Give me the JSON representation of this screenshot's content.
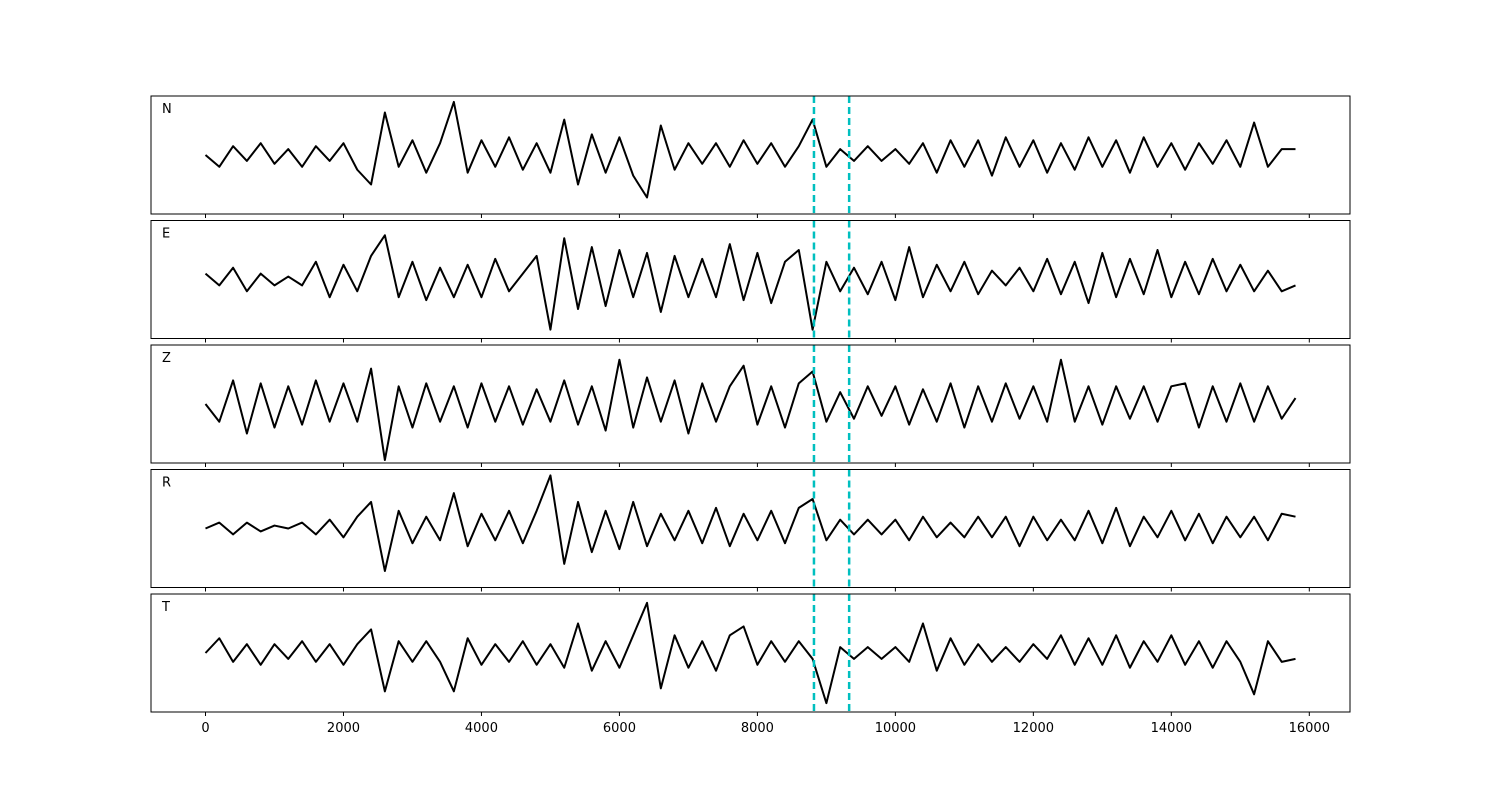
{
  "chart_data": [
    {
      "type": "line",
      "label": "N",
      "color": "#000000",
      "xlim": [
        -790,
        16590
      ],
      "ylim": [
        -1,
        1
      ],
      "xticks": [
        0,
        2000,
        4000,
        6000,
        8000,
        10000,
        12000,
        14000,
        16000
      ],
      "show_xtick_labels": false,
      "vlines": [
        8820,
        9330
      ],
      "vline_color": "#00bfbf",
      "x": [
        0,
        200,
        400,
        600,
        800,
        1000,
        1200,
        1400,
        1600,
        1800,
        2000,
        2200,
        2400,
        2600,
        2800,
        3000,
        3200,
        3400,
        3600,
        3800,
        4000,
        4200,
        4400,
        4600,
        4800,
        5000,
        5200,
        5400,
        5600,
        5800,
        6000,
        6200,
        6400,
        6600,
        6800,
        7000,
        7200,
        7400,
        7600,
        7800,
        8000,
        8200,
        8400,
        8600,
        8800,
        9000,
        9200,
        9400,
        9600,
        9800,
        10000,
        10200,
        10400,
        10600,
        10800,
        11000,
        11200,
        11400,
        11600,
        11800,
        12000,
        12200,
        12400,
        12600,
        12800,
        13000,
        13200,
        13400,
        13600,
        13800,
        14000,
        14200,
        14400,
        14600,
        14800,
        15000,
        15200,
        15400,
        15600,
        15800
      ],
      "values": [
        0.0,
        -0.2,
        0.15,
        -0.1,
        0.2,
        -0.15,
        0.1,
        -0.2,
        0.15,
        -0.1,
        0.2,
        -0.25,
        -0.5,
        0.72,
        -0.2,
        0.25,
        -0.3,
        0.2,
        0.9,
        -0.3,
        0.25,
        -0.2,
        0.3,
        -0.25,
        0.2,
        -0.3,
        0.6,
        -0.5,
        0.35,
        -0.3,
        0.3,
        -0.35,
        -0.72,
        0.5,
        -0.25,
        0.2,
        -0.15,
        0.2,
        -0.2,
        0.25,
        -0.15,
        0.2,
        -0.2,
        0.15,
        0.6,
        -0.2,
        0.1,
        -0.1,
        0.15,
        -0.1,
        0.1,
        -0.15,
        0.2,
        -0.3,
        0.25,
        -0.2,
        0.25,
        -0.35,
        0.3,
        -0.2,
        0.25,
        -0.3,
        0.2,
        -0.25,
        0.3,
        -0.2,
        0.25,
        -0.3,
        0.3,
        -0.2,
        0.2,
        -0.25,
        0.2,
        -0.15,
        0.25,
        -0.2,
        0.55,
        -0.2,
        0.1,
        0.1
      ]
    },
    {
      "type": "line",
      "label": "E",
      "color": "#000000",
      "xlim": [
        -790,
        16590
      ],
      "ylim": [
        -1,
        1
      ],
      "xticks": [
        0,
        2000,
        4000,
        6000,
        8000,
        10000,
        12000,
        14000,
        16000
      ],
      "show_xtick_labels": false,
      "vlines": [
        8820,
        9330
      ],
      "vline_color": "#00bfbf",
      "x": [
        0,
        200,
        400,
        600,
        800,
        1000,
        1200,
        1400,
        1600,
        1800,
        2000,
        2200,
        2400,
        2600,
        2800,
        3000,
        3200,
        3400,
        3600,
        3800,
        4000,
        4200,
        4400,
        4600,
        4800,
        5000,
        5200,
        5400,
        5600,
        5800,
        6000,
        6200,
        6400,
        6600,
        6800,
        7000,
        7200,
        7400,
        7600,
        7800,
        8000,
        8200,
        8400,
        8600,
        8800,
        9000,
        9200,
        9400,
        9600,
        9800,
        10000,
        10200,
        10400,
        10600,
        10800,
        11000,
        11200,
        11400,
        11600,
        11800,
        12000,
        12200,
        12400,
        12600,
        12800,
        13000,
        13200,
        13400,
        13600,
        13800,
        14000,
        14200,
        14400,
        14600,
        14800,
        15000,
        15200,
        15400,
        15600,
        15800
      ],
      "values": [
        0.1,
        -0.1,
        0.2,
        -0.2,
        0.1,
        -0.1,
        0.05,
        -0.1,
        0.3,
        -0.3,
        0.25,
        -0.2,
        0.4,
        0.75,
        -0.3,
        0.3,
        -0.35,
        0.2,
        -0.3,
        0.25,
        -0.3,
        0.35,
        -0.2,
        0.1,
        0.4,
        -0.85,
        0.7,
        -0.5,
        0.55,
        -0.45,
        0.5,
        -0.3,
        0.45,
        -0.55,
        0.4,
        -0.3,
        0.35,
        -0.3,
        0.6,
        -0.35,
        0.45,
        -0.4,
        0.3,
        0.5,
        -0.85,
        0.3,
        -0.2,
        0.2,
        -0.25,
        0.3,
        -0.35,
        0.55,
        -0.3,
        0.25,
        -0.2,
        0.3,
        -0.25,
        0.15,
        -0.1,
        0.2,
        -0.2,
        0.35,
        -0.25,
        0.3,
        -0.4,
        0.45,
        -0.3,
        0.35,
        -0.25,
        0.5,
        -0.3,
        0.3,
        -0.25,
        0.35,
        -0.2,
        0.25,
        -0.2,
        0.15,
        -0.2,
        -0.1
      ]
    },
    {
      "type": "line",
      "label": "Z",
      "color": "#000000",
      "xlim": [
        -790,
        16590
      ],
      "ylim": [
        -1,
        1
      ],
      "xticks": [
        0,
        2000,
        4000,
        6000,
        8000,
        10000,
        12000,
        14000,
        16000
      ],
      "show_xtick_labels": false,
      "vlines": [
        8820,
        9330
      ],
      "vline_color": "#00bfbf",
      "x": [
        0,
        200,
        400,
        600,
        800,
        1000,
        1200,
        1400,
        1600,
        1800,
        2000,
        2200,
        2400,
        2600,
        2800,
        3000,
        3200,
        3400,
        3600,
        3800,
        4000,
        4200,
        4400,
        4600,
        4800,
        5000,
        5200,
        5400,
        5600,
        5800,
        6000,
        6200,
        6400,
        6600,
        6800,
        7000,
        7200,
        7400,
        7600,
        7800,
        8000,
        8200,
        8400,
        8600,
        8800,
        9000,
        9200,
        9400,
        9600,
        9800,
        10000,
        10200,
        10400,
        10600,
        10800,
        11000,
        11200,
        11400,
        11600,
        11800,
        12000,
        12200,
        12400,
        12600,
        12800,
        13000,
        13200,
        13400,
        13600,
        13800,
        14000,
        14200,
        14400,
        14600,
        14800,
        15000,
        15200,
        15400,
        15600,
        15800
      ],
      "values": [
        0.0,
        -0.3,
        0.4,
        -0.5,
        0.35,
        -0.4,
        0.3,
        -0.35,
        0.4,
        -0.3,
        0.35,
        -0.3,
        0.6,
        -0.95,
        0.3,
        -0.4,
        0.35,
        -0.3,
        0.3,
        -0.4,
        0.35,
        -0.3,
        0.3,
        -0.35,
        0.25,
        -0.3,
        0.4,
        -0.35,
        0.3,
        -0.45,
        0.75,
        -0.4,
        0.45,
        -0.3,
        0.4,
        -0.5,
        0.35,
        -0.3,
        0.3,
        0.65,
        -0.35,
        0.3,
        -0.4,
        0.35,
        0.55,
        -0.3,
        0.2,
        -0.25,
        0.3,
        -0.2,
        0.3,
        -0.35,
        0.25,
        -0.3,
        0.35,
        -0.4,
        0.3,
        -0.3,
        0.35,
        -0.25,
        0.3,
        -0.3,
        0.75,
        -0.3,
        0.3,
        -0.35,
        0.3,
        -0.25,
        0.3,
        -0.3,
        0.3,
        0.35,
        -0.4,
        0.3,
        -0.3,
        0.35,
        -0.3,
        0.3,
        -0.25,
        0.1
      ]
    },
    {
      "type": "line",
      "label": "R",
      "color": "#000000",
      "xlim": [
        -790,
        16590
      ],
      "ylim": [
        -1,
        1
      ],
      "xticks": [
        0,
        2000,
        4000,
        6000,
        8000,
        10000,
        12000,
        14000,
        16000
      ],
      "show_xtick_labels": false,
      "vlines": [
        8820,
        9330
      ],
      "vline_color": "#00bfbf",
      "x": [
        0,
        200,
        400,
        600,
        800,
        1000,
        1200,
        1400,
        1600,
        1800,
        2000,
        2200,
        2400,
        2600,
        2800,
        3000,
        3200,
        3400,
        3600,
        3800,
        4000,
        4200,
        4400,
        4600,
        4800,
        5000,
        5200,
        5400,
        5600,
        5800,
        6000,
        6200,
        6400,
        6600,
        6800,
        7000,
        7200,
        7400,
        7600,
        7800,
        8000,
        8200,
        8400,
        8600,
        8800,
        9000,
        9200,
        9400,
        9600,
        9800,
        10000,
        10200,
        10400,
        10600,
        10800,
        11000,
        11200,
        11400,
        11600,
        11800,
        12000,
        12200,
        12400,
        12600,
        12800,
        13000,
        13200,
        13400,
        13600,
        13800,
        14000,
        14200,
        14400,
        14600,
        14800,
        15000,
        15200,
        15400,
        15600,
        15800
      ],
      "values": [
        0.0,
        0.1,
        -0.1,
        0.1,
        -0.05,
        0.05,
        0.0,
        0.1,
        -0.1,
        0.15,
        -0.15,
        0.2,
        0.45,
        -0.72,
        0.3,
        -0.25,
        0.2,
        -0.2,
        0.6,
        -0.3,
        0.25,
        -0.2,
        0.3,
        -0.25,
        0.3,
        0.9,
        -0.6,
        0.45,
        -0.4,
        0.3,
        -0.35,
        0.45,
        -0.3,
        0.25,
        -0.2,
        0.3,
        -0.25,
        0.35,
        -0.3,
        0.25,
        -0.2,
        0.3,
        -0.25,
        0.35,
        0.5,
        -0.2,
        0.15,
        -0.1,
        0.15,
        -0.1,
        0.15,
        -0.2,
        0.2,
        -0.15,
        0.1,
        -0.15,
        0.2,
        -0.15,
        0.2,
        -0.3,
        0.2,
        -0.2,
        0.15,
        -0.2,
        0.3,
        -0.25,
        0.35,
        -0.3,
        0.2,
        -0.15,
        0.3,
        -0.2,
        0.25,
        -0.25,
        0.2,
        -0.15,
        0.2,
        -0.2,
        0.25,
        0.2
      ]
    },
    {
      "type": "line",
      "label": "T",
      "color": "#000000",
      "xlim": [
        -790,
        16590
      ],
      "ylim": [
        -1,
        1
      ],
      "xticks": [
        0,
        2000,
        4000,
        6000,
        8000,
        10000,
        12000,
        14000,
        16000
      ],
      "show_xtick_labels": true,
      "vlines": [
        8820,
        9330
      ],
      "vline_color": "#00bfbf",
      "x": [
        0,
        200,
        400,
        600,
        800,
        1000,
        1200,
        1400,
        1600,
        1800,
        2000,
        2200,
        2400,
        2600,
        2800,
        3000,
        3200,
        3400,
        3600,
        3800,
        4000,
        4200,
        4400,
        4600,
        4800,
        5000,
        5200,
        5400,
        5600,
        5800,
        6000,
        6200,
        6400,
        6600,
        6800,
        7000,
        7200,
        7400,
        7600,
        7800,
        8000,
        8200,
        8400,
        8600,
        8800,
        9000,
        9200,
        9400,
        9600,
        9800,
        10000,
        10200,
        10400,
        10600,
        10800,
        11000,
        11200,
        11400,
        11600,
        11800,
        12000,
        12200,
        12400,
        12600,
        12800,
        13000,
        13200,
        13400,
        13600,
        13800,
        14000,
        14200,
        14400,
        14600,
        14800,
        15000,
        15200,
        15400,
        15600,
        15800
      ],
      "values": [
        0.0,
        0.25,
        -0.15,
        0.15,
        -0.2,
        0.15,
        -0.1,
        0.2,
        -0.15,
        0.15,
        -0.2,
        0.15,
        0.4,
        -0.65,
        0.2,
        -0.15,
        0.2,
        -0.15,
        -0.65,
        0.25,
        -0.2,
        0.15,
        -0.15,
        0.2,
        -0.2,
        0.15,
        -0.25,
        0.5,
        -0.3,
        0.2,
        -0.25,
        0.3,
        0.85,
        -0.6,
        0.3,
        -0.25,
        0.2,
        -0.3,
        0.3,
        0.45,
        -0.2,
        0.2,
        -0.15,
        0.2,
        -0.1,
        -0.85,
        0.1,
        -0.1,
        0.1,
        -0.1,
        0.1,
        -0.15,
        0.5,
        -0.3,
        0.25,
        -0.2,
        0.15,
        -0.15,
        0.1,
        -0.15,
        0.15,
        -0.1,
        0.3,
        -0.2,
        0.25,
        -0.2,
        0.3,
        -0.25,
        0.2,
        -0.15,
        0.3,
        -0.2,
        0.2,
        -0.25,
        0.2,
        -0.15,
        -0.7,
        0.2,
        -0.15,
        -0.1
      ]
    }
  ]
}
